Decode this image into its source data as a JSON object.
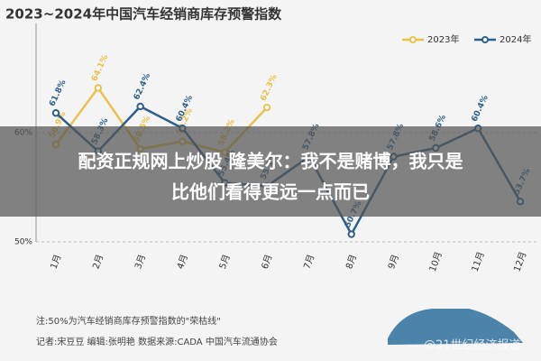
{
  "chart_data": {
    "type": "line",
    "title": "2023~2024年中国汽车经销商库存预警指数",
    "categories": [
      "1月",
      "2月",
      "3月",
      "4月",
      "5月",
      "6月",
      "7月",
      "8月",
      "9月",
      "10月",
      "11月",
      "12月"
    ],
    "series": [
      {
        "name": "2023年",
        "color": "#e8c24a",
        "values": [
          58.9,
          64.1,
          58.5,
          59.2,
          58.2,
          62.3,
          null,
          null,
          null,
          null,
          null,
          null
        ],
        "value_labels": [
          "58.9%",
          "64.1%",
          "58.5%",
          "59.2%",
          "58.2%",
          "62.3%",
          null,
          null,
          null,
          null,
          null,
          null
        ]
      },
      {
        "name": "2024年",
        "color": "#2d5f8a",
        "values": [
          61.8,
          58.3,
          62.4,
          60.4,
          55.4,
          55.1,
          57.8,
          50.7,
          57.8,
          58.6,
          60.4,
          53.7
        ],
        "value_labels": [
          "61.8%",
          "58.3%",
          "62.4%",
          "60.4%",
          "55.4%",
          "55.1%",
          "57.8%",
          "50.7%",
          "57.8%",
          "58.6%",
          "60.4%",
          "53.7%"
        ]
      }
    ],
    "ylim": [
      50,
      70
    ],
    "yticks": [
      {
        "value": 50,
        "label": "50%"
      },
      {
        "value": 60,
        "label": "60%"
      }
    ],
    "grid": true,
    "legend": "top-right",
    "notes": [
      "注:50%为汽车经销商库存预警指数的\"荣枯线\"",
      "记者:宋豆豆  编辑:张明艳  数据来源:CADA 中国汽车流通协会"
    ]
  },
  "overlay": {
    "headline": [
      "配资正规网上炒股 隆美尔：我不是赌博，我只是",
      "比他们看得更远一点而已"
    ],
    "watermark": "@21世纪经济报道"
  }
}
